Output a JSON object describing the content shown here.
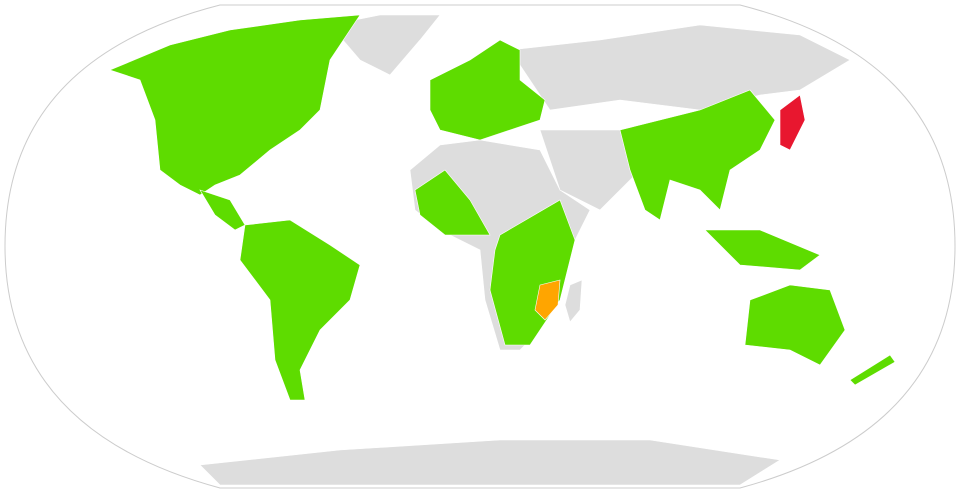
{
  "map": {
    "land_color": "#dddddd",
    "region_colors": [
      "#5edc00",
      "#ffa500",
      "#e8172f"
    ],
    "outline_color": "#cccccc"
  }
}
